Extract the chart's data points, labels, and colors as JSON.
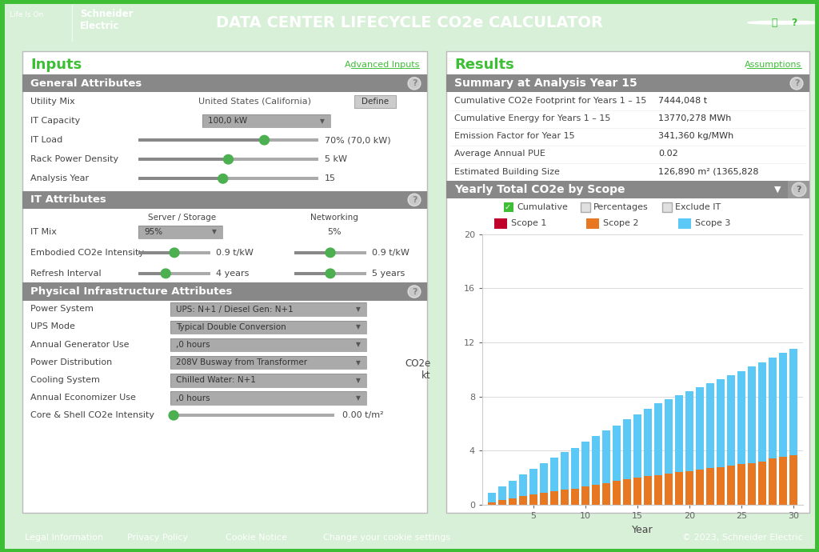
{
  "title": "DATA CENTER LIFECYCLE CO2e CALCULATOR",
  "header_bg": "#3dbe35",
  "header_text_color": "#ffffff",
  "main_bg": "#d8efd8",
  "footer_bg": "#3dbe35",
  "footer_items": [
    "Legal Information",
    "Privacy Policy",
    "Cookie Notice",
    "Change your cookie settings"
  ],
  "footer_right": "© 2023, Schneider Electric",
  "section_header_bg": "#888888",
  "green_text": "#3dbe35",
  "inputs_title": "Inputs",
  "advanced_inputs": "Advanced Inputs",
  "results_title": "Results",
  "assumptions": "Assumptions",
  "general_attrs_title": "General Attributes",
  "it_attrs_title": "IT Attributes",
  "physical_attrs_title": "Physical Infrastructure Attributes",
  "summary_title": "Summary at Analysis Year 15",
  "chart_title": "Yearly Total CO2e by Scope",
  "summary_rows": [
    [
      "Cumulative CO2e Footprint for Years 1 – 15",
      "7444,048 t"
    ],
    [
      "Cumulative Energy for Years 1 – 15",
      "13770,278 MWh"
    ],
    [
      "Emission Factor for Year 15",
      "341,360 kg/MWh"
    ],
    [
      "Average Annual PUE",
      "0.02"
    ],
    [
      "Estimated Building Size",
      "126,890 m² (1365,828"
    ]
  ],
  "physical_rows": [
    [
      "Power System",
      "UPS: N+1 / Diesel Gen: N+1"
    ],
    [
      "UPS Mode",
      "Typical Double Conversion"
    ],
    [
      "Annual Generator Use",
      ",0 hours"
    ],
    [
      "Power Distribution",
      "208V Busway from Transformer"
    ],
    [
      "Cooling System",
      "Chilled Water: N+1"
    ],
    [
      "Annual Economizer Use",
      ",0 hours"
    ],
    [
      "Core & Shell CO2e Intensity",
      "0.00 t/m²"
    ]
  ],
  "scope1_color": "#c0002a",
  "scope2_color": "#e87722",
  "scope3_color": "#5bc8f5",
  "chart_scope2": [
    0.2,
    0.35,
    0.5,
    0.65,
    0.75,
    0.9,
    1.0,
    1.1,
    1.2,
    1.35,
    1.5,
    1.6,
    1.75,
    1.9,
    2.0,
    2.1,
    2.2,
    2.3,
    2.4,
    2.5,
    2.6,
    2.7,
    2.8,
    2.9,
    3.0,
    3.1,
    3.2,
    3.4,
    3.55,
    3.65
  ],
  "chart_scope3": [
    0.7,
    1.0,
    1.3,
    1.6,
    1.9,
    2.2,
    2.5,
    2.8,
    3.0,
    3.3,
    3.6,
    3.9,
    4.1,
    4.4,
    4.7,
    5.0,
    5.3,
    5.5,
    5.7,
    5.9,
    6.1,
    6.3,
    6.5,
    6.7,
    6.9,
    7.1,
    7.3,
    7.5,
    7.7,
    7.9
  ],
  "chart_grid_color": "#cccccc",
  "slider_dot": "#4caf50",
  "checkbox_checked_color": "#3dbe35"
}
